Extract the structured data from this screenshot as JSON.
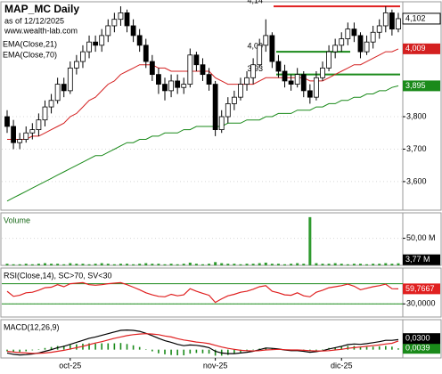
{
  "chart_data": [
    {
      "type": "candlestick",
      "title": "MAP_MC Daily",
      "subtitle": "as of 12/12/2025",
      "source": "www.wealth-lab.com",
      "open": [
        3.8,
        3.77,
        3.72,
        3.73,
        3.75,
        3.76,
        3.79,
        3.83,
        3.85,
        3.9,
        3.88,
        3.95,
        3.97,
        4.0,
        4.03,
        4.02,
        4.05,
        4.08,
        4.1,
        4.12,
        4.08,
        4.05,
        4.02,
        3.97,
        3.93,
        3.9,
        3.88,
        3.91,
        3.89,
        3.9,
        3.99,
        3.96,
        3.93,
        3.9,
        3.76,
        3.8,
        3.84,
        3.86,
        3.9,
        3.92,
        3.96,
        4.02,
        4.05,
        3.97,
        3.94,
        3.91,
        3.9,
        3.93,
        3.88,
        3.86,
        3.92,
        3.95,
        4.0,
        4.02,
        4.04,
        4.07,
        4.05,
        4.0,
        4.03,
        4.06,
        4.08,
        4.12,
        4.07
      ],
      "high": [
        3.82,
        3.79,
        3.75,
        3.77,
        3.78,
        3.81,
        3.85,
        3.87,
        3.92,
        3.92,
        3.97,
        3.99,
        4.02,
        4.05,
        4.05,
        4.07,
        4.1,
        4.12,
        4.14,
        4.13,
        4.1,
        4.07,
        4.04,
        3.99,
        3.95,
        3.92,
        3.93,
        3.93,
        3.92,
        4.01,
        4.0,
        3.98,
        3.95,
        3.91,
        3.82,
        3.86,
        3.88,
        3.92,
        3.94,
        3.98,
        4.04,
        4.1,
        4.06,
        3.99,
        3.96,
        3.93,
        3.95,
        3.94,
        3.9,
        3.94,
        3.97,
        4.02,
        4.04,
        4.06,
        4.09,
        4.09,
        4.06,
        4.05,
        4.08,
        4.1,
        4.14,
        4.13,
        4.12
      ],
      "low": [
        3.75,
        3.7,
        3.7,
        3.72,
        3.73,
        3.74,
        3.77,
        3.81,
        3.84,
        3.86,
        3.87,
        3.93,
        3.95,
        3.98,
        4.0,
        4.0,
        4.03,
        4.06,
        4.08,
        4.06,
        4.03,
        4.0,
        3.95,
        3.91,
        3.87,
        3.85,
        3.86,
        3.87,
        3.87,
        3.89,
        3.94,
        3.91,
        3.88,
        3.74,
        3.75,
        3.78,
        3.82,
        3.85,
        3.88,
        3.9,
        3.95,
        4.0,
        3.95,
        3.92,
        3.89,
        3.88,
        3.89,
        3.86,
        3.84,
        3.85,
        3.91,
        3.94,
        3.98,
        4.0,
        4.02,
        4.03,
        3.98,
        3.99,
        4.01,
        4.04,
        4.06,
        4.05,
        4.06
      ],
      "close": [
        3.77,
        3.72,
        3.73,
        3.75,
        3.76,
        3.79,
        3.83,
        3.85,
        3.9,
        3.88,
        3.95,
        3.97,
        4.0,
        4.03,
        4.02,
        4.05,
        4.08,
        4.1,
        4.12,
        4.08,
        4.05,
        4.02,
        3.97,
        3.93,
        3.9,
        3.88,
        3.91,
        3.89,
        3.9,
        3.99,
        3.96,
        3.93,
        3.9,
        3.76,
        3.8,
        3.84,
        3.86,
        3.9,
        3.92,
        3.96,
        4.02,
        4.05,
        3.97,
        3.94,
        3.91,
        3.9,
        3.93,
        3.88,
        3.86,
        3.92,
        3.95,
        4.0,
        4.02,
        4.04,
        4.07,
        4.05,
        4.0,
        4.03,
        4.06,
        4.08,
        4.12,
        4.07,
        4.102
      ],
      "close_label": "4,102",
      "up_color": "#ffffff",
      "down_color": "#000000",
      "series": [
        {
          "name": "EMA(Close,21)",
          "color": "#d42020",
          "last_label": "4,009",
          "values": [
            3.73,
            3.73,
            3.73,
            3.73,
            3.74,
            3.74,
            3.75,
            3.76,
            3.77,
            3.78,
            3.8,
            3.81,
            3.83,
            3.85,
            3.86,
            3.88,
            3.9,
            3.91,
            3.93,
            3.94,
            3.95,
            3.96,
            3.96,
            3.96,
            3.95,
            3.95,
            3.94,
            3.94,
            3.94,
            3.94,
            3.94,
            3.94,
            3.94,
            3.92,
            3.91,
            3.9,
            3.9,
            3.9,
            3.9,
            3.9,
            3.91,
            3.92,
            3.92,
            3.92,
            3.92,
            3.92,
            3.92,
            3.92,
            3.91,
            3.91,
            3.91,
            3.92,
            3.93,
            3.94,
            3.95,
            3.96,
            3.96,
            3.97,
            3.98,
            3.99,
            4.0,
            4.0,
            4.009
          ]
        },
        {
          "name": "EMA(Close,70)",
          "color": "#1a8a1a",
          "last_label": "3,895",
          "values": [
            3.54,
            3.55,
            3.56,
            3.57,
            3.58,
            3.59,
            3.6,
            3.61,
            3.62,
            3.63,
            3.64,
            3.65,
            3.66,
            3.67,
            3.68,
            3.68,
            3.69,
            3.7,
            3.71,
            3.72,
            3.72,
            3.73,
            3.73,
            3.74,
            3.74,
            3.75,
            3.75,
            3.75,
            3.76,
            3.76,
            3.77,
            3.77,
            3.77,
            3.77,
            3.77,
            3.78,
            3.78,
            3.78,
            3.79,
            3.79,
            3.79,
            3.8,
            3.8,
            3.81,
            3.81,
            3.81,
            3.82,
            3.82,
            3.82,
            3.83,
            3.83,
            3.84,
            3.84,
            3.85,
            3.85,
            3.86,
            3.86,
            3.87,
            3.87,
            3.88,
            3.88,
            3.89,
            3.895
          ]
        }
      ],
      "levels": [
        {
          "value": 4.14,
          "label": "4,14",
          "color": "#e02020"
        },
        {
          "value": 4.0,
          "label": "4,00",
          "color": "#1a8a1a"
        },
        {
          "value": 3.93,
          "label": "3,93",
          "color": "#1a8a1a"
        }
      ],
      "ylim": [
        3.512,
        4.154
      ],
      "yticks": [
        {
          "value": 3.6,
          "label": "3,600"
        },
        {
          "value": 3.7,
          "label": "3,700"
        },
        {
          "value": 3.8,
          "label": "3,800"
        }
      ]
    },
    {
      "type": "bar",
      "title": "Volume",
      "color": "#2e9a2e",
      "last_label": "3,77 M",
      "values": [
        3,
        2,
        2,
        3,
        2,
        3,
        4,
        3,
        3,
        2,
        4,
        3,
        3,
        2,
        3,
        4,
        3,
        2,
        3,
        3,
        2,
        3,
        4,
        3,
        3,
        2,
        3,
        2,
        3,
        5,
        3,
        2,
        3,
        6,
        4,
        3,
        3,
        2,
        3,
        3,
        4,
        5,
        3,
        3,
        2,
        3,
        4,
        3,
        89,
        4,
        3,
        3,
        4,
        3,
        2,
        3,
        3,
        2,
        3,
        3,
        4,
        3,
        3.77
      ],
      "ylim": [
        0,
        97
      ],
      "yticks": [
        {
          "value": 50,
          "label": "50,00 M"
        }
      ]
    },
    {
      "type": "line",
      "title": "RSI(Close,14), SC>70, SV<30",
      "series": [
        {
          "color": "#e02020",
          "last_label": "59,7667",
          "values": [
            55,
            45,
            47,
            52,
            53,
            57,
            62,
            63,
            68,
            64,
            70,
            71,
            72,
            68,
            67,
            68,
            70,
            71,
            72,
            68,
            63,
            58,
            52,
            48,
            45,
            44,
            49,
            46,
            48,
            60,
            55,
            51,
            47,
            33,
            40,
            46,
            49,
            53,
            55,
            59,
            64,
            66,
            55,
            52,
            48,
            47,
            52,
            46,
            44,
            53,
            57,
            62,
            64,
            66,
            69,
            65,
            58,
            61,
            64,
            66,
            69,
            60,
            59.7667
          ]
        }
      ],
      "levels": [
        70,
        30
      ],
      "level_color": "#1a8a1a",
      "ylim": [
        4,
        101
      ],
      "yticks": [
        {
          "value": 30,
          "label": "30,0000"
        }
      ]
    },
    {
      "type": "line",
      "title": "MACD(12,26,9)",
      "series": [
        {
          "color": "#1a8a1a",
          "style": "bar",
          "last_label": "0,0039",
          "values": [
            -0.005,
            -0.007,
            -0.007,
            -0.005,
            -0.002,
            0.001,
            0.005,
            0.008,
            0.011,
            0.012,
            0.014,
            0.016,
            0.018,
            0.019,
            0.018,
            0.019,
            0.019,
            0.019,
            0.02,
            0.017,
            0.013,
            0.008,
            0.001,
            -0.005,
            -0.011,
            -0.014,
            -0.016,
            -0.017,
            -0.017,
            -0.012,
            -0.01,
            -0.011,
            -0.012,
            -0.018,
            -0.018,
            -0.016,
            -0.013,
            -0.008,
            -0.005,
            -0.001,
            0.003,
            0.006,
            0.004,
            0.001,
            -0.001,
            -0.002,
            -0.002,
            -0.003,
            -0.005,
            -0.002,
            0.001,
            0.005,
            0.007,
            0.009,
            0.011,
            0.011,
            0.008,
            0.008,
            0.009,
            0.01,
            0.011,
            0.009,
            0.0039
          ]
        },
        {
          "color": "#000000",
          "last_label": "0,0300",
          "values": [
            -0.01,
            -0.014,
            -0.016,
            -0.015,
            -0.013,
            -0.01,
            -0.005,
            0.0,
            0.006,
            0.01,
            0.016,
            0.022,
            0.028,
            0.034,
            0.038,
            0.043,
            0.048,
            0.053,
            0.058,
            0.059,
            0.058,
            0.055,
            0.049,
            0.042,
            0.034,
            0.027,
            0.022,
            0.016,
            0.012,
            0.014,
            0.013,
            0.01,
            0.006,
            -0.005,
            -0.01,
            -0.012,
            -0.012,
            -0.01,
            -0.008,
            -0.005,
            0.0,
            0.005,
            0.004,
            0.002,
            -0.001,
            -0.003,
            -0.003,
            -0.005,
            -0.008,
            -0.006,
            -0.003,
            0.002,
            0.006,
            0.01,
            0.015,
            0.017,
            0.016,
            0.018,
            0.021,
            0.024,
            0.028,
            0.028,
            0.03
          ]
        },
        {
          "color": "#e02020",
          "values": [
            -0.005,
            -0.007,
            -0.009,
            -0.01,
            -0.011,
            -0.011,
            -0.01,
            -0.008,
            -0.005,
            -0.002,
            0.002,
            0.006,
            0.01,
            0.015,
            0.02,
            0.024,
            0.029,
            0.034,
            0.038,
            0.042,
            0.045,
            0.047,
            0.048,
            0.047,
            0.045,
            0.041,
            0.038,
            0.033,
            0.029,
            0.026,
            0.023,
            0.021,
            0.018,
            0.013,
            0.008,
            0.004,
            0.001,
            -0.002,
            -0.003,
            -0.004,
            -0.003,
            -0.001,
            0.0,
            0.001,
            0.0,
            -0.001,
            -0.001,
            -0.002,
            -0.003,
            -0.004,
            -0.004,
            -0.003,
            -0.001,
            0.001,
            0.004,
            0.006,
            0.008,
            0.01,
            0.012,
            0.014,
            0.017,
            0.019,
            0.0261
          ]
        }
      ],
      "ylim": [
        -0.025,
        0.09
      ],
      "categories": [
        null,
        null,
        null,
        null,
        null,
        null,
        null,
        null,
        null,
        null,
        "oct-25",
        null,
        null,
        null,
        null,
        null,
        null,
        null,
        null,
        null,
        null,
        null,
        null,
        null,
        null,
        null,
        null,
        null,
        null,
        null,
        null,
        null,
        null,
        "nov-25",
        null,
        null,
        null,
        null,
        null,
        null,
        null,
        null,
        null,
        null,
        null,
        null,
        null,
        null,
        null,
        null,
        null,
        null,
        null,
        "dic-25",
        null,
        null,
        null,
        null,
        null,
        null,
        null,
        null,
        null
      ]
    }
  ]
}
